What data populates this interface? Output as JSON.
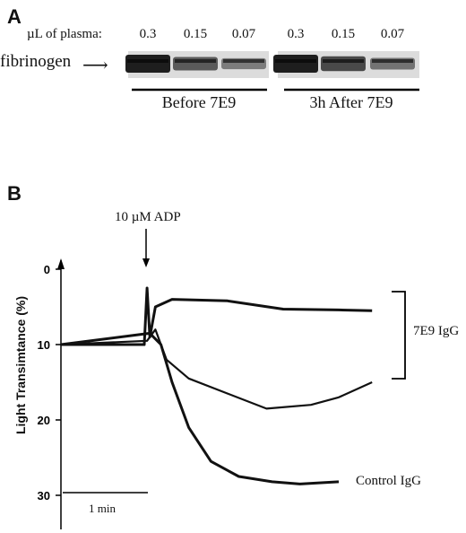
{
  "panel_a": {
    "letter": "A",
    "lane_header": "µL of plasma:",
    "lanes": [
      "0.3",
      "0.15",
      "0.07",
      "0.3",
      "0.15",
      "0.07"
    ],
    "band_label": "fibrinogen",
    "band_intensity": [
      1.0,
      0.65,
      0.45,
      1.0,
      0.75,
      0.5
    ],
    "groups": [
      "Before 7E9",
      "3h After 7E9"
    ]
  },
  "panel_b": {
    "letter": "B",
    "stimulus_label": "10 µM ADP",
    "brace_label": "7E9 IgG",
    "control_label": "Control IgG",
    "scale_bar_label": "1 min",
    "chart_data": {
      "type": "line",
      "ylabel": "Light Transimtance (%)",
      "yticks": [
        0,
        10,
        20,
        30
      ],
      "ylim": [
        -2,
        31
      ],
      "xlim": [
        0,
        6
      ],
      "series": [
        {
          "x": [
            0,
            1.5,
            1.55,
            1.6,
            1.7,
            2.0,
            3.0,
            4.0,
            5.0,
            5.6
          ],
          "y": [
            10,
            10,
            2.5,
            9,
            5,
            4,
            4.2,
            5.3,
            5.4,
            5.5
          ]
        },
        {
          "x": [
            0,
            1.55,
            1.7,
            1.9,
            2.3,
            3.0,
            3.7,
            4.5,
            5.0,
            5.6
          ],
          "y": [
            10,
            9.5,
            8,
            12,
            14.5,
            16.5,
            18.5,
            18,
            17,
            15
          ]
        },
        {
          "x": [
            0,
            1.6,
            1.8,
            2.0,
            2.3,
            2.7,
            3.2,
            3.8,
            4.3,
            5.0
          ],
          "y": [
            10,
            8.5,
            10,
            15,
            21,
            25.5,
            27.5,
            28.2,
            28.5,
            28.2
          ]
        }
      ]
    }
  }
}
